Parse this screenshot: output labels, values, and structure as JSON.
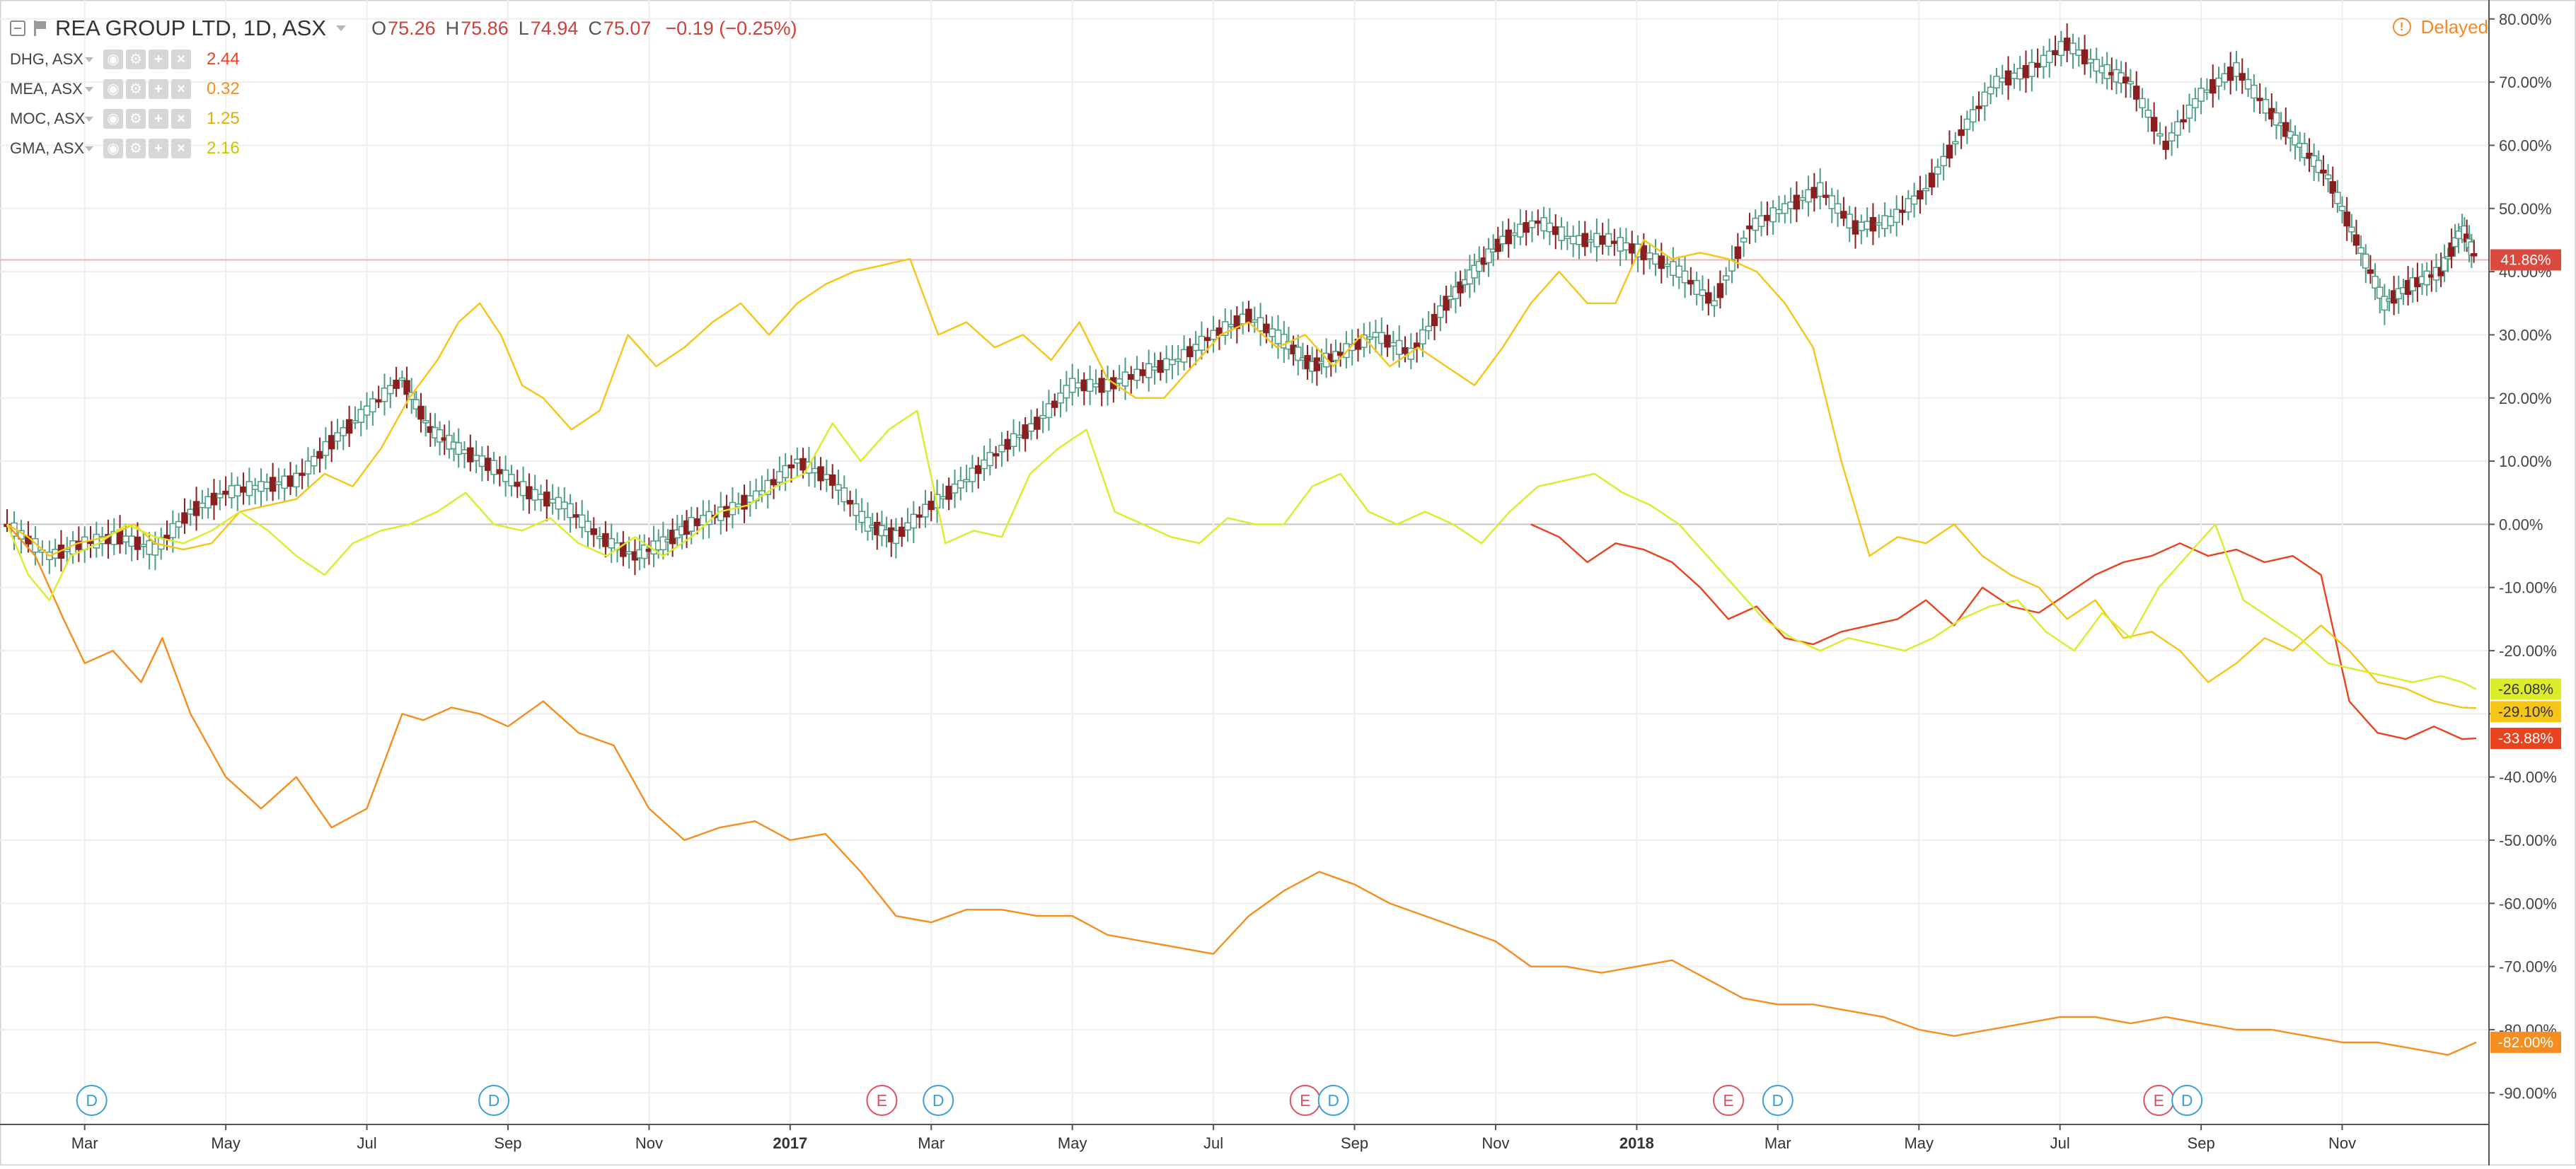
{
  "header": {
    "title": "REA GROUP LTD, 1D, ASX",
    "ohlc": [
      {
        "label": "O",
        "value": "75.26"
      },
      {
        "label": "H",
        "value": "75.86"
      },
      {
        "label": "L",
        "value": "74.94"
      },
      {
        "label": "C",
        "value": "75.07"
      }
    ],
    "change": "−0.19 (−0.25%)",
    "status": "Delayed"
  },
  "compare": [
    {
      "name": "DHG, ASX",
      "value": "2.44",
      "color": "#e8431e"
    },
    {
      "name": "MEA, ASX",
      "value": "0.32",
      "color": "#f58d1f"
    },
    {
      "name": "MOC, ASX",
      "value": "1.25",
      "color": "#f5c518"
    },
    {
      "name": "GMA, ASX",
      "value": "2.16",
      "color": "#dcec2a"
    }
  ],
  "colors": {
    "up_candle": "#4c9c83",
    "down_candle": "#8b1e1e",
    "grid": "#eeeeee",
    "zero_line": "#c4c4c4",
    "price_line": "#f2b1a8",
    "price_badge": "#d9493e",
    "dividend": "#3aa0d8",
    "earnings": "#e05060"
  },
  "chart_data": {
    "type": "line",
    "ylim": [
      -95,
      83
    ],
    "y_ticks": [
      "80.00%",
      "70.00%",
      "60.00%",
      "50.00%",
      "40.00%",
      "30.00%",
      "20.00%",
      "10.00%",
      "0.00%",
      "-10.00%",
      "-20.00%",
      "-30.00%",
      "-40.00%",
      "-50.00%",
      "-60.00%",
      "-70.00%",
      "-80.00%",
      "-90.00%"
    ],
    "x_ticks": [
      "Mar",
      "May",
      "Jul",
      "Sep",
      "Nov",
      "2017",
      "Mar",
      "May",
      "Jul",
      "Sep",
      "Nov",
      "2018",
      "Mar",
      "May",
      "Jul",
      "Sep",
      "Nov"
    ],
    "x_tick_pos": [
      2,
      4,
      6,
      8,
      10,
      12,
      14,
      16,
      18,
      20,
      22,
      24,
      26,
      28,
      30,
      32,
      34
    ],
    "x_range": [
      0.9,
      35.9
    ],
    "price_line": {
      "value": 41.86,
      "label": "41.86%"
    },
    "badges": [
      {
        "label": "41.86%",
        "value": 41.86,
        "color": "#d9493e",
        "text_color": "#ffffff"
      },
      {
        "label": "-26.08%",
        "value": -26.08,
        "color": "#dcec2a",
        "text_color": "#333333"
      },
      {
        "label": "-29.10%",
        "value": -29.1,
        "color": "#f5c518",
        "text_color": "#333333"
      },
      {
        "label": "-33.88%",
        "value": -33.88,
        "color": "#e8431e",
        "text_color": "#ffffff"
      },
      {
        "label": "-82.00%",
        "value": -82.0,
        "color": "#f58d1f",
        "text_color": "#ffffff"
      }
    ],
    "markers": [
      {
        "type": "D",
        "x": 2.1
      },
      {
        "type": "D",
        "x": 7.8
      },
      {
        "type": "E",
        "x": 13.3
      },
      {
        "type": "D",
        "x": 14.1
      },
      {
        "type": "E",
        "x": 19.3
      },
      {
        "type": "D",
        "x": 19.7
      },
      {
        "type": "E",
        "x": 25.3
      },
      {
        "type": "D",
        "x": 26.0
      },
      {
        "type": "E",
        "x": 31.4
      },
      {
        "type": "D",
        "x": 31.8
      }
    ],
    "series": [
      {
        "key": "REA",
        "type": "candlestick",
        "x": [
          0.9,
          1.5,
          2.0,
          2.5,
          3.0,
          3.5,
          4.0,
          4.5,
          5.0,
          5.5,
          6.0,
          6.5,
          6.9,
          7.3,
          7.8,
          8.3,
          8.8,
          9.3,
          9.8,
          10.2,
          10.6,
          11.1,
          11.6,
          12.1,
          12.6,
          13.1,
          13.5,
          14.0,
          14.5,
          15.0,
          15.5,
          16.0,
          16.5,
          17.0,
          17.5,
          18.0,
          18.5,
          19.0,
          19.4,
          19.8,
          20.3,
          20.8,
          21.3,
          21.7,
          22.1,
          22.6,
          23.1,
          23.6,
          24.1,
          24.6,
          25.1,
          25.6,
          26.1,
          26.6,
          27.1,
          27.6,
          28.1,
          28.6,
          29.1,
          29.6,
          30.1,
          30.6,
          31.0,
          31.5,
          32.0,
          32.5,
          33.0,
          33.4,
          33.8,
          34.2,
          34.6,
          35.0,
          35.4,
          35.7,
          35.9
        ],
        "values": [
          0,
          -5,
          -3,
          -2,
          -4,
          2,
          5,
          6,
          7,
          13,
          18,
          23,
          15,
          12,
          9,
          5,
          3,
          -2,
          -5,
          -3,
          0,
          2,
          5,
          10,
          7,
          0,
          -2,
          3,
          7,
          12,
          16,
          22,
          22,
          24,
          26,
          30,
          33,
          29,
          25,
          27,
          30,
          27,
          35,
          40,
          45,
          48,
          45,
          45,
          43,
          40,
          35,
          47,
          50,
          53,
          47,
          48,
          53,
          62,
          70,
          72,
          76,
          72,
          70,
          60,
          68,
          72,
          65,
          60,
          55,
          45,
          35,
          38,
          40,
          47,
          42
        ]
      },
      {
        "key": "DHG",
        "type": "line",
        "color": "#e8431e",
        "x": [
          22.5,
          22.9,
          23.3,
          23.7,
          24.1,
          24.5,
          24.9,
          25.3,
          25.7,
          26.1,
          26.5,
          26.9,
          27.3,
          27.7,
          28.1,
          28.5,
          28.9,
          29.3,
          29.7,
          30.1,
          30.5,
          30.9,
          31.3,
          31.7,
          32.1,
          32.5,
          32.9,
          33.3,
          33.7,
          34.1,
          34.5,
          34.9,
          35.3,
          35.7,
          35.9
        ],
        "values": [
          0,
          -2,
          -6,
          -3,
          -4,
          -6,
          -10,
          -15,
          -13,
          -18,
          -19,
          -17,
          -16,
          -15,
          -12,
          -16,
          -10,
          -13,
          -14,
          -11,
          -8,
          -6,
          -5,
          -3,
          -5,
          -4,
          -6,
          -5,
          -8,
          -28,
          -33,
          -34,
          -32,
          -34,
          -33.88
        ]
      },
      {
        "key": "MEA",
        "type": "line",
        "color": "#f58d1f",
        "x": [
          0.9,
          1.3,
          1.7,
          2.0,
          2.4,
          2.8,
          3.1,
          3.5,
          4.0,
          4.5,
          5.0,
          5.5,
          6.0,
          6.5,
          6.8,
          7.2,
          7.6,
          8.0,
          8.5,
          9.0,
          9.5,
          10.0,
          10.5,
          11.0,
          11.5,
          12.0,
          12.5,
          13.0,
          13.5,
          14.0,
          14.5,
          15.0,
          15.5,
          16.0,
          16.5,
          17.0,
          17.5,
          18.0,
          18.5,
          19.0,
          19.5,
          20.0,
          20.5,
          21.0,
          21.5,
          22.0,
          22.5,
          23.0,
          23.5,
          24.0,
          24.5,
          25.0,
          25.5,
          26.0,
          26.5,
          27.0,
          27.5,
          28.0,
          28.5,
          29.0,
          29.5,
          30.0,
          30.5,
          31.0,
          31.5,
          32.0,
          32.5,
          33.0,
          33.5,
          34.0,
          34.5,
          35.0,
          35.5,
          35.9
        ],
        "values": [
          0,
          -5,
          -15,
          -22,
          -20,
          -25,
          -18,
          -30,
          -40,
          -45,
          -40,
          -48,
          -45,
          -30,
          -31,
          -29,
          -30,
          -32,
          -28,
          -33,
          -35,
          -45,
          -50,
          -48,
          -47,
          -50,
          -49,
          -55,
          -62,
          -63,
          -61,
          -61,
          -62,
          -62,
          -65,
          -66,
          -67,
          -68,
          -62,
          -58,
          -55,
          -57,
          -60,
          -62,
          -64,
          -66,
          -70,
          -70,
          -71,
          -70,
          -69,
          -72,
          -75,
          -76,
          -76,
          -77,
          -78,
          -80,
          -81,
          -80,
          -79,
          -78,
          -78,
          -79,
          -78,
          -79,
          -80,
          -80,
          -81,
          -82,
          -82,
          -83,
          -84,
          -82
        ]
      },
      {
        "key": "MOC",
        "type": "line",
        "color": "#f5c518",
        "x": [
          0.9,
          1.2,
          1.5,
          1.9,
          2.3,
          2.7,
          3.0,
          3.4,
          3.8,
          4.2,
          4.6,
          5.0,
          5.4,
          5.8,
          6.2,
          6.6,
          7.0,
          7.3,
          7.6,
          7.9,
          8.2,
          8.5,
          8.9,
          9.3,
          9.7,
          10.1,
          10.5,
          10.9,
          11.3,
          11.7,
          12.1,
          12.5,
          12.9,
          13.3,
          13.7,
          14.1,
          14.5,
          14.9,
          15.3,
          15.7,
          16.1,
          16.5,
          16.9,
          17.3,
          17.7,
          18.1,
          18.5,
          18.9,
          19.3,
          19.7,
          20.1,
          20.5,
          20.9,
          21.3,
          21.7,
          22.1,
          22.5,
          22.9,
          23.3,
          23.7,
          24.1,
          24.5,
          24.9,
          25.3,
          25.7,
          26.1,
          26.5,
          26.9,
          27.3,
          27.7,
          28.1,
          28.5,
          28.9,
          29.3,
          29.7,
          30.1,
          30.5,
          30.9,
          31.3,
          31.7,
          32.1,
          32.5,
          32.9,
          33.3,
          33.7,
          34.1,
          34.5,
          34.9,
          35.3,
          35.7,
          35.9
        ],
        "values": [
          0,
          -2,
          -5,
          -3,
          -2,
          0,
          -3,
          -4,
          -3,
          2,
          3,
          4,
          8,
          6,
          12,
          20,
          26,
          32,
          35,
          30,
          22,
          20,
          15,
          18,
          30,
          25,
          28,
          32,
          35,
          30,
          35,
          38,
          40,
          41,
          42,
          30,
          32,
          28,
          30,
          26,
          32,
          23,
          20,
          20,
          25,
          30,
          32,
          28,
          30,
          25,
          30,
          25,
          28,
          25,
          22,
          28,
          35,
          40,
          35,
          35,
          45,
          42,
          43,
          42,
          40,
          35,
          28,
          10,
          -5,
          -2,
          -3,
          0,
          -5,
          -8,
          -10,
          -15,
          -12,
          -18,
          -17,
          -20,
          -25,
          -22,
          -18,
          -20,
          -16,
          -20,
          -25,
          -26,
          -28,
          -29,
          -29.1
        ]
      },
      {
        "key": "GMA",
        "type": "line",
        "color": "#dcec2a",
        "x": [
          0.9,
          1.2,
          1.5,
          1.8,
          2.2,
          2.6,
          3.0,
          3.4,
          3.8,
          4.2,
          4.6,
          5.0,
          5.4,
          5.8,
          6.2,
          6.6,
          7.0,
          7.4,
          7.8,
          8.2,
          8.6,
          9.0,
          9.4,
          9.8,
          10.2,
          10.6,
          11.0,
          11.4,
          11.8,
          12.2,
          12.6,
          13.0,
          13.4,
          13.8,
          14.2,
          14.6,
          15.0,
          15.4,
          15.8,
          16.2,
          16.6,
          17.0,
          17.4,
          17.8,
          18.2,
          18.6,
          19.0,
          19.4,
          19.8,
          20.2,
          20.6,
          21.0,
          21.4,
          21.8,
          22.2,
          22.6,
          23.0,
          23.4,
          23.8,
          24.2,
          24.6,
          25.0,
          25.4,
          25.8,
          26.2,
          26.6,
          27.0,
          27.4,
          27.8,
          28.2,
          28.6,
          29.0,
          29.4,
          29.8,
          30.2,
          30.6,
          31.0,
          31.4,
          31.8,
          32.2,
          32.6,
          33.0,
          33.4,
          33.8,
          34.2,
          34.6,
          35.0,
          35.4,
          35.7,
          35.9
        ],
        "values": [
          0,
          -8,
          -12,
          -5,
          -3,
          0,
          -2,
          -3,
          -1,
          2,
          -1,
          -5,
          -8,
          -3,
          -1,
          0,
          2,
          5,
          0,
          -1,
          1,
          -3,
          -5,
          -2,
          -5,
          -2,
          2,
          3,
          6,
          8,
          16,
          10,
          15,
          18,
          -3,
          -1,
          -2,
          8,
          12,
          15,
          2,
          0,
          -2,
          -3,
          1,
          0,
          0,
          6,
          8,
          2,
          0,
          2,
          0,
          -3,
          2,
          6,
          7,
          8,
          5,
          3,
          0,
          -5,
          -10,
          -15,
          -18,
          -20,
          -18,
          -19,
          -20,
          -18,
          -15,
          -13,
          -12,
          -17,
          -20,
          -14,
          -18,
          -10,
          -5,
          0,
          -12,
          -15,
          -18,
          -22,
          -23,
          -24,
          -25,
          -24,
          -25,
          -26.08
        ]
      }
    ]
  }
}
